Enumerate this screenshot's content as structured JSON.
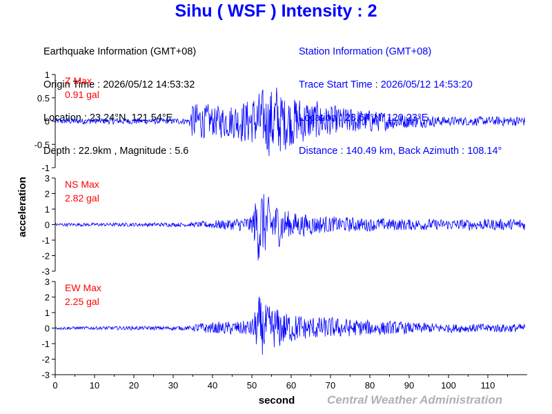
{
  "header": {
    "title": "Sihu ( WSF ) Intensity : 2"
  },
  "earthquake_info": [
    "Earthquake Information (GMT+08)",
    "Origin Time : 2026/05/12 14:53:32",
    "Location : 23.24°N, 121.54°E",
    "Depth : 22.9km , Magnitude : 5.6"
  ],
  "station_info": [
    "Station Information (GMT+08)",
    "Trace Start Time : 2026/05/12 14:53:20",
    "Location : 23.64°N, 120.23°E",
    "Distance : 140.49 km, Back Azimuth : 108.14°"
  ],
  "footer": {
    "credit": "Central Weather Administration"
  },
  "colors": {
    "trace": "#0000ff",
    "peak_label": "#ff0000",
    "title": "#0000ff",
    "credit": "#b0b0b0"
  },
  "chart_data": {
    "type": "line",
    "xlabel": "second",
    "ylabel": "acceleration",
    "xlim": [
      0,
      120
    ],
    "xticks": [
      0,
      10,
      20,
      30,
      40,
      50,
      60,
      70,
      80,
      90,
      100,
      110
    ],
    "panels": [
      {
        "component": "Z",
        "label": "Z Max",
        "peak": "0.91 gal",
        "ylim": [
          -1,
          1
        ],
        "yticks": [
          -1,
          -0.5,
          0,
          0.5,
          1
        ],
        "envelope": [
          [
            0,
            0.07
          ],
          [
            34,
            0.07
          ],
          [
            35,
            0.45
          ],
          [
            40,
            0.35
          ],
          [
            45,
            0.4
          ],
          [
            50,
            0.55
          ],
          [
            54,
            0.75
          ],
          [
            56,
            0.9
          ],
          [
            58,
            0.65
          ],
          [
            62,
            0.55
          ],
          [
            70,
            0.35
          ],
          [
            80,
            0.25
          ],
          [
            90,
            0.16
          ],
          [
            100,
            0.1
          ],
          [
            110,
            0.1
          ],
          [
            119.5,
            0.12
          ]
        ]
      },
      {
        "component": "NS",
        "label": "NS Max",
        "peak": "2.82 gal",
        "ylim": [
          -3,
          3
        ],
        "yticks": [
          -3,
          -2,
          -1,
          0,
          1,
          2,
          3
        ],
        "envelope": [
          [
            0,
            0.1
          ],
          [
            35,
            0.15
          ],
          [
            40,
            0.3
          ],
          [
            45,
            0.4
          ],
          [
            50,
            0.6
          ],
          [
            51,
            2.0
          ],
          [
            52,
            2.8
          ],
          [
            54,
            1.8
          ],
          [
            56,
            1.6
          ],
          [
            60,
            0.9
          ],
          [
            65,
            0.7
          ],
          [
            70,
            0.55
          ],
          [
            80,
            0.45
          ],
          [
            90,
            0.4
          ],
          [
            100,
            0.35
          ],
          [
            119.5,
            0.4
          ]
        ]
      },
      {
        "component": "EW",
        "label": "EW Max",
        "peak": "2.25 gal",
        "ylim": [
          -3,
          3
        ],
        "yticks": [
          -3,
          -2,
          -1,
          0,
          1,
          2,
          3
        ],
        "envelope": [
          [
            0,
            0.1
          ],
          [
            35,
            0.15
          ],
          [
            36,
            0.35
          ],
          [
            45,
            0.45
          ],
          [
            50,
            0.6
          ],
          [
            52,
            2.2
          ],
          [
            54,
            1.5
          ],
          [
            57,
            1.4
          ],
          [
            60,
            1.0
          ],
          [
            65,
            0.8
          ],
          [
            70,
            0.7
          ],
          [
            80,
            0.55
          ],
          [
            90,
            0.4
          ],
          [
            100,
            0.3
          ],
          [
            119.5,
            0.3
          ]
        ]
      }
    ]
  }
}
